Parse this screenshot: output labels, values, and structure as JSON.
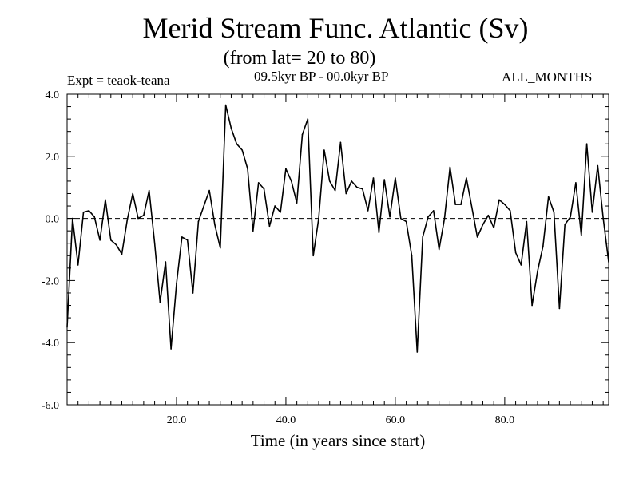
{
  "chart_data": {
    "type": "line",
    "title": "Merid Stream Func. Atlantic (Sv)",
    "subtitle": "(from lat= 20 to 80)",
    "experiment": "Expt = teaok-teana",
    "period": "09.5kyr BP - 00.0kyr BP",
    "months": "ALL_MONTHS",
    "xlabel": "Time (in years since start)",
    "ylabel": "",
    "xlim": [
      0,
      99
    ],
    "ylim": [
      -6.0,
      4.0
    ],
    "x_ticks": [
      20,
      40,
      60,
      80
    ],
    "x_tick_labels": [
      "20.0",
      "40.0",
      "60.0",
      "80.0"
    ],
    "y_ticks": [
      -6,
      -4,
      -2,
      0,
      2,
      4
    ],
    "y_tick_labels": [
      "-6.0",
      "-4.0",
      "-2.0",
      "0.0",
      "2.0",
      "4.0"
    ],
    "reference_line": 0.0,
    "series": [
      {
        "name": "Merid Stream Func.",
        "x": [
          0,
          1,
          2,
          3,
          4,
          5,
          6,
          7,
          8,
          9,
          10,
          11,
          12,
          13,
          14,
          15,
          16,
          17,
          18,
          19,
          20,
          21,
          22,
          23,
          24,
          25,
          26,
          27,
          28,
          29,
          30,
          31,
          32,
          33,
          34,
          35,
          36,
          37,
          38,
          39,
          40,
          41,
          42,
          43,
          44,
          45,
          46,
          47,
          48,
          49,
          50,
          51,
          52,
          53,
          54,
          55,
          56,
          57,
          58,
          59,
          60,
          61,
          62,
          63,
          64,
          65,
          66,
          67,
          68,
          69,
          70,
          71,
          72,
          73,
          74,
          75,
          76,
          77,
          78,
          79,
          80,
          81,
          82,
          83,
          84,
          85,
          86,
          87,
          88,
          89,
          90,
          91,
          92,
          93,
          94,
          95,
          96,
          97,
          98,
          99
        ],
        "values": [
          -3.5,
          0.0,
          -1.5,
          0.2,
          0.25,
          0.05,
          -0.7,
          0.6,
          -0.7,
          -0.85,
          -1.15,
          -0.05,
          0.8,
          0.0,
          0.1,
          0.9,
          -0.8,
          -2.7,
          -1.4,
          -4.2,
          -2.1,
          -0.6,
          -0.7,
          -2.4,
          -0.1,
          0.4,
          0.9,
          -0.2,
          -0.95,
          3.65,
          2.9,
          2.4,
          2.2,
          1.6,
          -0.4,
          1.15,
          0.95,
          -0.25,
          0.4,
          0.2,
          1.6,
          1.2,
          0.5,
          2.7,
          3.2,
          -1.2,
          0.0,
          2.2,
          1.2,
          0.9,
          2.45,
          0.8,
          1.2,
          1.0,
          0.95,
          0.25,
          1.3,
          -0.45,
          1.25,
          0.05,
          1.3,
          0.0,
          -0.1,
          -1.2,
          -4.3,
          -0.6,
          0.05,
          0.25,
          -1.0,
          0.0,
          1.65,
          0.45,
          0.45,
          1.3,
          0.35,
          -0.6,
          -0.2,
          0.1,
          -0.3,
          0.6,
          0.45,
          0.25,
          -1.1,
          -1.5,
          -0.1,
          -2.8,
          -1.7,
          -0.9,
          0.7,
          0.2,
          -2.9,
          -0.2,
          0.05,
          1.15,
          -0.55,
          2.4,
          0.2,
          1.7,
          0.0,
          -1.4
        ]
      }
    ]
  }
}
